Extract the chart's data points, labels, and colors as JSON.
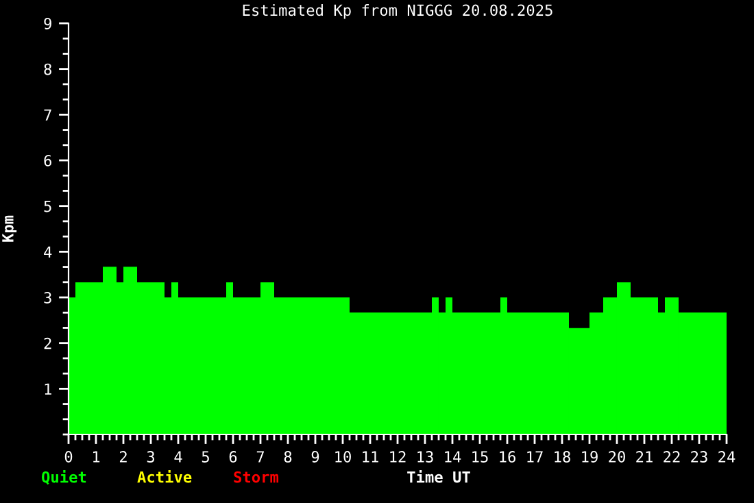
{
  "chart_data": {
    "type": "histogram",
    "title": "Estimated Kp from NIGGG 20.08.2025",
    "xlabel": "Time UT",
    "ylabel": "Kpm",
    "bins": [
      0,
      0.25,
      1.25,
      1.75,
      2,
      2.5,
      3.5,
      3.75,
      4,
      5.75,
      6,
      7,
      7.5,
      10.25,
      13.25,
      13.5,
      13.75,
      14,
      15.75,
      16,
      18.25,
      19,
      19.5,
      20,
      20.5,
      21.5,
      21.75,
      22.25,
      24
    ],
    "values": [
      3,
      3.33,
      3.67,
      3.33,
      3.67,
      3.33,
      3,
      3.33,
      3,
      3.33,
      3,
      3.33,
      3,
      2.67,
      3,
      2.67,
      3,
      2.67,
      3,
      2.67,
      2.33,
      2.67,
      3,
      3.33,
      3,
      2.67,
      3,
      2.67
    ],
    "color": "#00ff00",
    "annotations": [
      "Quiet",
      "Active",
      "Storm"
    ],
    "xlim": [
      0,
      24
    ],
    "xticks": [
      0,
      1,
      2,
      3,
      4,
      5,
      6,
      7,
      8,
      9,
      10,
      11,
      12,
      13,
      14,
      15,
      16,
      17,
      18,
      19,
      20,
      21,
      22,
      23,
      24
    ],
    "ylim": [
      0,
      9
    ],
    "yticks": [
      1,
      2,
      3,
      4,
      5,
      6,
      7,
      8,
      9
    ],
    "grid": false,
    "legend": false
  }
}
